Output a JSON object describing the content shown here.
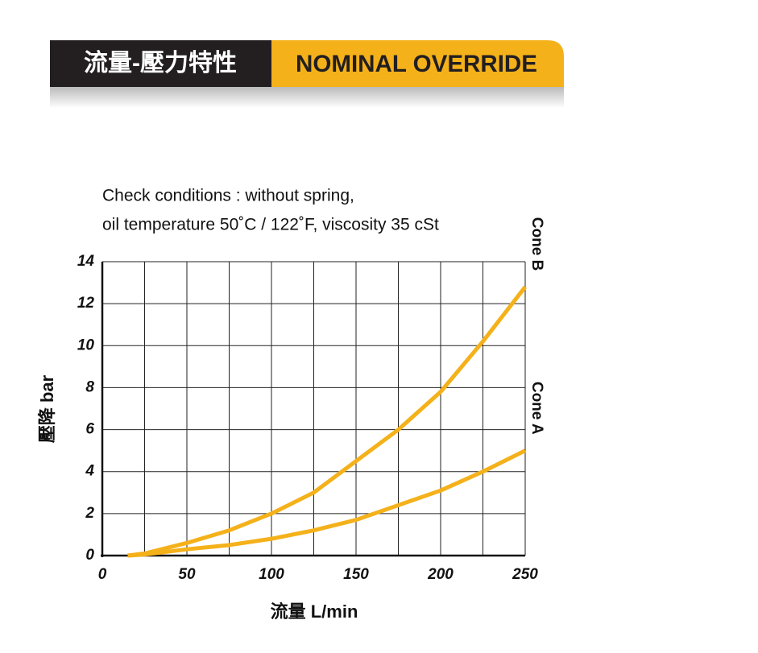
{
  "header": {
    "title": "流量-壓力特性",
    "subtitle": "NOMINAL OVERRIDE"
  },
  "chart_data": {
    "type": "line",
    "subtitle_lines": [
      "Check conditions : without spring,",
      "oil temperature 50˚C / 122˚F, viscosity 35 cSt"
    ],
    "x_label": "流量 L/min",
    "y_label": "壓降 bar",
    "x": [
      15,
      25,
      50,
      75,
      100,
      125,
      150,
      175,
      200,
      225,
      250
    ],
    "series": [
      {
        "name": "Cone B",
        "color": "#f4b11a",
        "values": [
          0,
          0.1,
          0.6,
          1.2,
          2,
          3,
          4.5,
          6,
          7.8,
          10.2,
          12.8
        ]
      },
      {
        "name": "Cone A",
        "color": "#f4b11a",
        "values": [
          0,
          0.05,
          0.3,
          0.5,
          0.8,
          1.2,
          1.7,
          2.4,
          3.1,
          4,
          5
        ]
      }
    ],
    "xlim": [
      0,
      250
    ],
    "ylim": [
      0,
      14
    ],
    "xticks": [
      0,
      50,
      100,
      150,
      200,
      250
    ],
    "x_gridlines": [
      25,
      50,
      75,
      100,
      125,
      150,
      175,
      200,
      225,
      250
    ],
    "yticks": [
      0,
      2,
      4,
      6,
      8,
      10,
      12,
      14
    ],
    "grid": true
  }
}
